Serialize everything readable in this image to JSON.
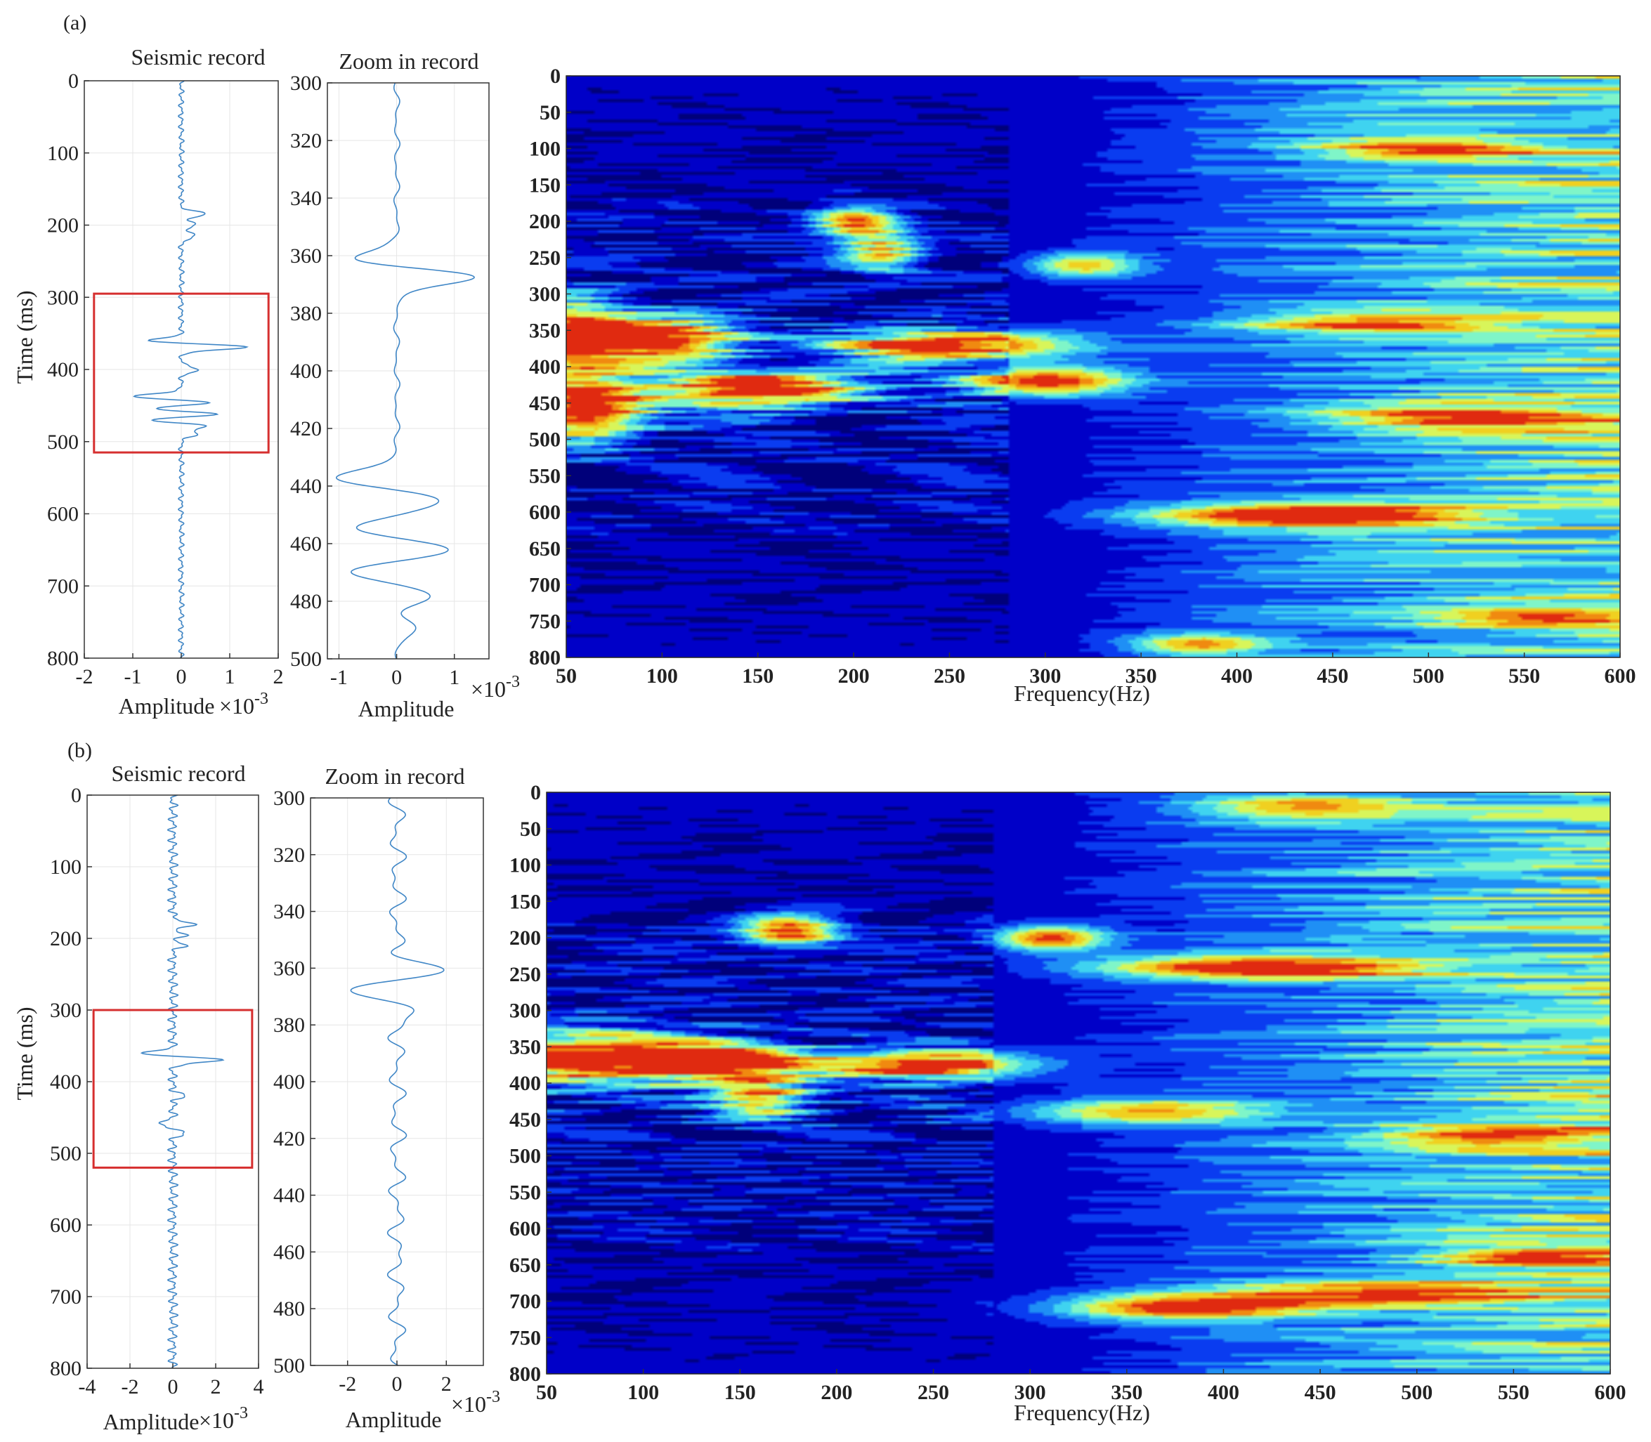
{
  "colors": {
    "trace": "#3f86c6",
    "highlight_box": "#d62f2f",
    "colormap": [
      "#00007a",
      "#0000c8",
      "#0a3cf0",
      "#1f8ff5",
      "#3fd3f0",
      "#7ff5c8",
      "#d8f55a",
      "#f0d020",
      "#f08a10",
      "#e02a10",
      "#b00a00"
    ]
  },
  "chart_data": [
    {
      "panel_label": "(a)",
      "charts": [
        {
          "type": "line",
          "title": "Seismic record",
          "xlabel": "Amplitude",
          "ylabel": "Time (ms)",
          "x_multiplier": "×10",
          "x_exponent": "-3",
          "xlim": [
            -2,
            2
          ],
          "ylim": [
            0,
            800
          ],
          "xticks": [
            "-2",
            "-1",
            "0",
            "1",
            "2"
          ],
          "yticks": [
            "0",
            "100",
            "200",
            "300",
            "400",
            "500",
            "600",
            "700",
            "800"
          ],
          "y_inverted": true,
          "highlight_box": {
            "x0": -1.8,
            "x1": 1.8,
            "y0": 295,
            "y1": 515
          },
          "events": [
            {
              "t": 185,
              "a": 0.5
            },
            {
              "t": 200,
              "a": 0.3
            },
            {
              "t": 215,
              "a": 0.3
            },
            {
              "t": 362,
              "a": -1.0
            },
            {
              "t": 368,
              "a": 1.65
            },
            {
              "t": 400,
              "a": 0.35
            },
            {
              "t": 438,
              "a": -1.1
            },
            {
              "t": 445,
              "a": 0.75
            },
            {
              "t": 455,
              "a": -0.7
            },
            {
              "t": 462,
              "a": 0.95
            },
            {
              "t": 470,
              "a": -0.8
            },
            {
              "t": 478,
              "a": 0.6
            },
            {
              "t": 490,
              "a": 0.3
            }
          ],
          "noise": 0.06
        },
        {
          "type": "line",
          "title": "Zoom in record",
          "xlabel": "Amplitude",
          "x_multiplier": "×10",
          "x_exponent": "-3",
          "xlim": [
            -1.2,
            1.6
          ],
          "ylim": [
            300,
            500
          ],
          "xticks": [
            "-1",
            "0",
            "1"
          ],
          "yticks": [
            "300",
            "320",
            "340",
            "360",
            "380",
            "400",
            "420",
            "440",
            "460",
            "480",
            "500"
          ],
          "y_inverted": true,
          "events": [
            {
              "t": 362,
              "a": -1.0
            },
            {
              "t": 367,
              "a": 1.55
            },
            {
              "t": 437,
              "a": -1.05
            },
            {
              "t": 445,
              "a": 0.75
            },
            {
              "t": 455,
              "a": -0.7
            },
            {
              "t": 462,
              "a": 0.95
            },
            {
              "t": 470,
              "a": -0.8
            },
            {
              "t": 478,
              "a": 0.6
            },
            {
              "t": 490,
              "a": 0.3
            }
          ],
          "noise": 0.08
        },
        {
          "type": "heatmap",
          "xlabel": "Frequency(Hz)",
          "xlim": [
            50,
            600
          ],
          "ylim": [
            0,
            800
          ],
          "xticks": [
            "50",
            "100",
            "150",
            "200",
            "250",
            "300",
            "350",
            "400",
            "450",
            "500",
            "550",
            "600"
          ],
          "yticks": [
            "0",
            "50",
            "100",
            "150",
            "200",
            "250",
            "300",
            "350",
            "400",
            "450",
            "500",
            "550",
            "600",
            "650",
            "700",
            "750",
            "800"
          ],
          "y_inverted": true,
          "hotspots": [
            {
              "f": 50,
              "t": 360,
              "sf": 22,
              "st": 35,
              "w": 1.0
            },
            {
              "f": 60,
              "t": 460,
              "sf": 22,
              "st": 30,
              "w": 1.0
            },
            {
              "f": 100,
              "t": 360,
              "sf": 28,
              "st": 20,
              "w": 0.9
            },
            {
              "f": 150,
              "t": 430,
              "sf": 40,
              "st": 18,
              "w": 0.95
            },
            {
              "f": 200,
              "t": 200,
              "sf": 15,
              "st": 15,
              "w": 0.7
            },
            {
              "f": 215,
              "t": 240,
              "sf": 15,
              "st": 20,
              "w": 0.6
            },
            {
              "f": 250,
              "t": 370,
              "sf": 45,
              "st": 14,
              "w": 0.95
            },
            {
              "f": 300,
              "t": 420,
              "sf": 30,
              "st": 14,
              "w": 0.85
            },
            {
              "f": 320,
              "t": 260,
              "sf": 20,
              "st": 12,
              "w": 0.6
            },
            {
              "f": 440,
              "t": 605,
              "sf": 60,
              "st": 12,
              "w": 0.85
            },
            {
              "f": 500,
              "t": 100,
              "sf": 40,
              "st": 12,
              "w": 0.6
            },
            {
              "f": 520,
              "t": 470,
              "sf": 50,
              "st": 12,
              "w": 0.6
            },
            {
              "f": 560,
              "t": 745,
              "sf": 40,
              "st": 10,
              "w": 0.6
            },
            {
              "f": 380,
              "t": 785,
              "sf": 25,
              "st": 10,
              "w": 0.6
            },
            {
              "f": 470,
              "t": 340,
              "sf": 50,
              "st": 12,
              "w": 0.55
            }
          ],
          "seed": 7
        }
      ]
    },
    {
      "panel_label": "(b)",
      "charts": [
        {
          "type": "line",
          "title": "Seismic record",
          "xlabel": "Amplitude",
          "ylabel": "Time (ms)",
          "x_multiplier": "×10",
          "x_exponent": "-3",
          "xlim": [
            -4,
            4
          ],
          "ylim": [
            0,
            800
          ],
          "xticks": [
            "-4",
            "-2",
            "0",
            "2",
            "4"
          ],
          "yticks": [
            "0",
            "100",
            "200",
            "300",
            "400",
            "500",
            "600",
            "700",
            "800"
          ],
          "y_inverted": true,
          "highlight_box": {
            "x0": -3.7,
            "x1": 3.7,
            "y0": 300,
            "y1": 520
          },
          "events": [
            {
              "t": 180,
              "a": 0.9
            },
            {
              "t": 195,
              "a": 0.5
            },
            {
              "t": 210,
              "a": 0.5
            },
            {
              "t": 363,
              "a": -2.5
            },
            {
              "t": 368,
              "a": 3.3
            },
            {
              "t": 420,
              "a": 0.5
            },
            {
              "t": 460,
              "a": -0.7
            },
            {
              "t": 470,
              "a": 0.6
            }
          ],
          "noise": 0.12
        },
        {
          "type": "line",
          "title": "Zoom in record",
          "xlabel": "Amplitude",
          "x_multiplier": "×10",
          "x_exponent": "-3",
          "xlim": [
            -3.5,
            3.5
          ],
          "ylim": [
            300,
            500
          ],
          "xticks": [
            "-2",
            "0",
            "2"
          ],
          "yticks": [
            "300",
            "320",
            "340",
            "360",
            "380",
            "400",
            "420",
            "440",
            "460",
            "480",
            "500"
          ],
          "y_inverted": true,
          "events": [
            {
              "t": 362,
              "a": 2.6
            },
            {
              "t": 366,
              "a": -2.6
            },
            {
              "t": 375,
              "a": 0.5
            }
          ],
          "noise": 0.22
        },
        {
          "type": "heatmap",
          "xlabel": "Frequency(Hz)",
          "xlim": [
            50,
            600
          ],
          "ylim": [
            0,
            800
          ],
          "xticks": [
            "50",
            "100",
            "150",
            "200",
            "250",
            "300",
            "350",
            "400",
            "450",
            "500",
            "550",
            "600"
          ],
          "yticks": [
            "0",
            "50",
            "100",
            "150",
            "200",
            "250",
            "300",
            "350",
            "400",
            "450",
            "500",
            "550",
            "600",
            "650",
            "700",
            "750",
            "800"
          ],
          "y_inverted": true,
          "hotspots": [
            {
              "f": 70,
              "t": 365,
              "sf": 40,
              "st": 25,
              "w": 1.0
            },
            {
              "f": 140,
              "t": 370,
              "sf": 30,
              "st": 18,
              "w": 0.8
            },
            {
              "f": 175,
              "t": 190,
              "sf": 18,
              "st": 15,
              "w": 0.85
            },
            {
              "f": 240,
              "t": 375,
              "sf": 40,
              "st": 14,
              "w": 0.95
            },
            {
              "f": 160,
              "t": 420,
              "sf": 18,
              "st": 20,
              "w": 0.7
            },
            {
              "f": 310,
              "t": 200,
              "sf": 20,
              "st": 12,
              "w": 0.8
            },
            {
              "f": 420,
              "t": 240,
              "sf": 60,
              "st": 12,
              "w": 0.8
            },
            {
              "f": 380,
              "t": 710,
              "sf": 45,
              "st": 12,
              "w": 0.8
            },
            {
              "f": 360,
              "t": 440,
              "sf": 45,
              "st": 12,
              "w": 0.6
            },
            {
              "f": 440,
              "t": 20,
              "sf": 40,
              "st": 12,
              "w": 0.55
            },
            {
              "f": 540,
              "t": 475,
              "sf": 40,
              "st": 12,
              "w": 0.55
            },
            {
              "f": 480,
              "t": 690,
              "sf": 60,
              "st": 12,
              "w": 0.6
            },
            {
              "f": 560,
              "t": 640,
              "sf": 35,
              "st": 10,
              "w": 0.5
            }
          ],
          "seed": 13
        }
      ]
    }
  ]
}
